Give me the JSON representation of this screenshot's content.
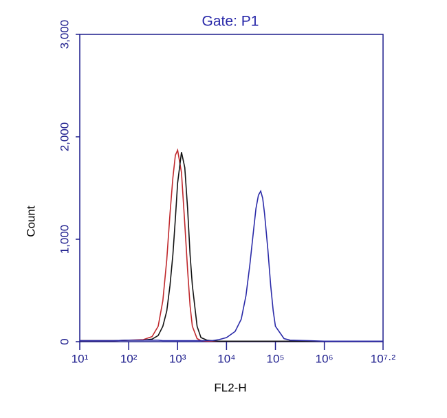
{
  "chart_data": {
    "type": "line",
    "title": "Gate: P1",
    "x_label": "FL2-H",
    "y_label": "Count",
    "log_x": true,
    "axis_color": "#1c1c8c",
    "xlim": [
      10,
      15848932
    ],
    "ylim": [
      0,
      3000
    ],
    "xticks": [
      {
        "value": 10,
        "label": "10¹"
      },
      {
        "value": 100,
        "label": "10²"
      },
      {
        "value": 1000,
        "label": "10³"
      },
      {
        "value": 10000,
        "label": "10⁴"
      },
      {
        "value": 100000,
        "label": "10⁵"
      },
      {
        "value": 1000000,
        "label": "10⁶"
      },
      {
        "value": 15848932,
        "label": "10⁷·²"
      }
    ],
    "yticks": [
      0,
      {
        "value": 1000,
        "label": "1,000"
      },
      {
        "value": 2000,
        "label": "2,000"
      },
      {
        "value": 3000,
        "label": "3,000"
      }
    ],
    "x": [
      10,
      20,
      50,
      100,
      200,
      300,
      400,
      500,
      600,
      700,
      800,
      900,
      1000,
      1200,
      1400,
      1600,
      1800,
      2000,
      2500,
      3000,
      4000,
      5000,
      7000,
      10000,
      15000,
      20000,
      25000,
      30000,
      35000,
      40000,
      45000,
      50000,
      55000,
      60000,
      70000,
      80000,
      90000,
      100000,
      150000,
      200000,
      500000,
      1000000,
      10000000,
      15848932
    ],
    "series": [
      {
        "name": "red",
        "color": "#c0282c",
        "values": [
          10,
          10,
          10,
          15,
          20,
          50,
          150,
          400,
          800,
          1250,
          1600,
          1820,
          1870,
          1650,
          1150,
          700,
          350,
          150,
          30,
          10,
          5,
          5,
          5,
          5,
          5,
          5,
          5,
          5,
          5,
          5,
          5,
          5,
          5,
          5,
          5,
          5,
          5,
          5,
          5,
          5,
          5,
          5,
          5,
          5
        ]
      },
      {
        "name": "black",
        "color": "#111111",
        "values": [
          10,
          10,
          10,
          15,
          15,
          25,
          60,
          150,
          300,
          550,
          850,
          1200,
          1550,
          1850,
          1700,
          1300,
          850,
          550,
          150,
          40,
          15,
          10,
          5,
          5,
          5,
          5,
          5,
          5,
          5,
          5,
          5,
          5,
          5,
          5,
          5,
          5,
          5,
          5,
          5,
          5,
          5,
          5,
          5,
          5
        ]
      },
      {
        "name": "blue",
        "color": "#2a2aa8",
        "values": [
          10,
          10,
          10,
          15,
          15,
          15,
          15,
          10,
          10,
          10,
          10,
          10,
          10,
          10,
          10,
          10,
          10,
          10,
          10,
          10,
          10,
          10,
          20,
          40,
          100,
          220,
          450,
          750,
          1050,
          1300,
          1430,
          1470,
          1400,
          1250,
          900,
          550,
          300,
          150,
          30,
          15,
          10,
          5,
          5,
          5
        ]
      }
    ]
  }
}
